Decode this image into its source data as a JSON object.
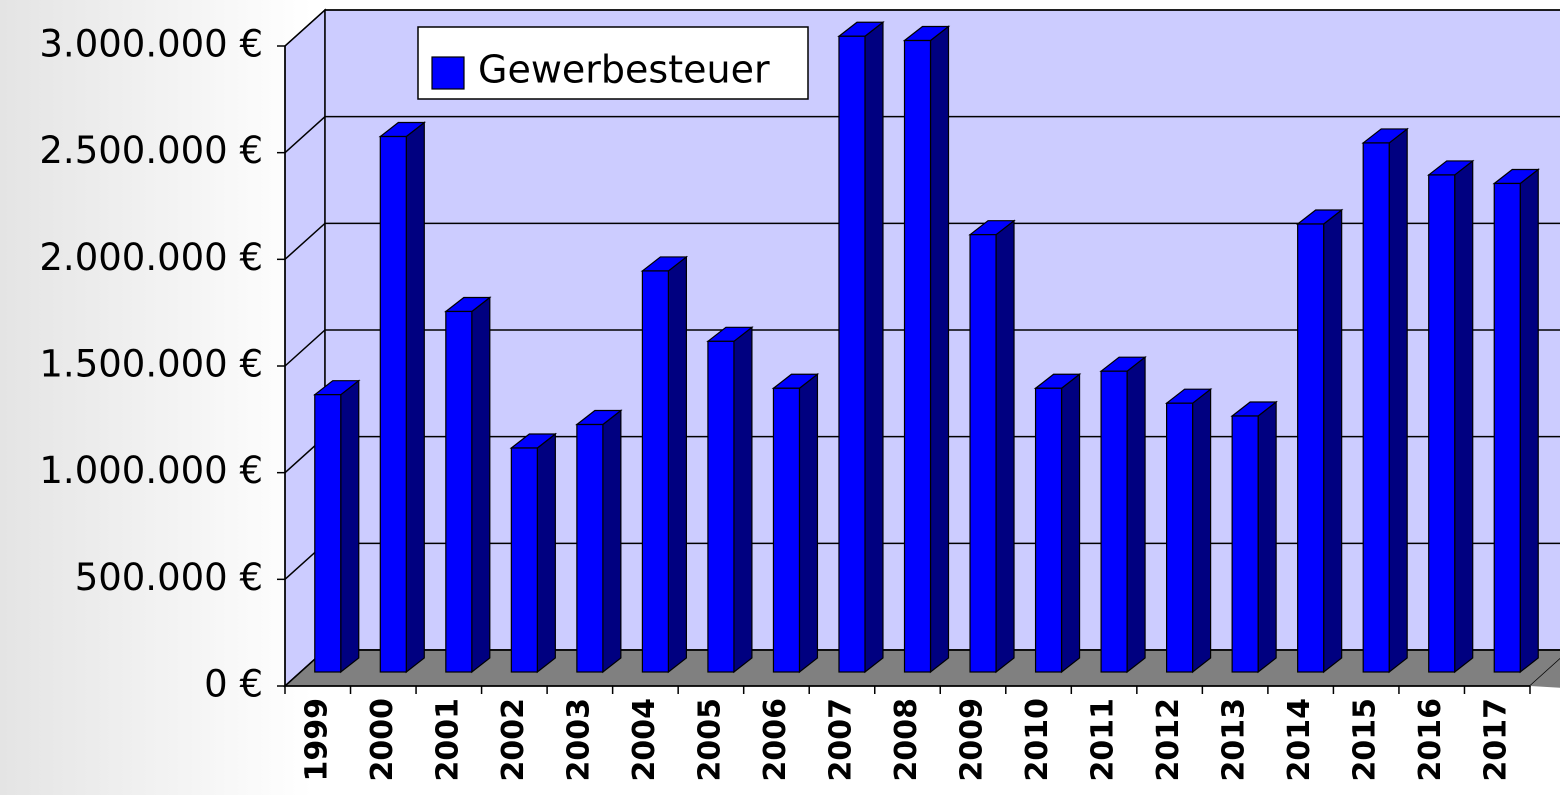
{
  "chart_data": {
    "type": "bar3d",
    "categories": [
      "1999",
      "2000",
      "2001",
      "2002",
      "2003",
      "2004",
      "2005",
      "2006",
      "2007",
      "2008",
      "2009",
      "2010",
      "2011",
      "2012",
      "2013",
      "2014",
      "2015",
      "2016",
      "2017"
    ],
    "series": [
      {
        "name": "Gewerbesteuer",
        "color": "#0000ff",
        "values": [
          1300000,
          2510000,
          1690000,
          1050000,
          1160000,
          1880000,
          1550000,
          1330000,
          2980000,
          2960000,
          2050000,
          1330000,
          1410000,
          1260000,
          1200000,
          2100000,
          2480000,
          2330000,
          2290000
        ]
      }
    ],
    "ylim": [
      0,
      3000000
    ],
    "yticks": [
      {
        "value": 0,
        "label": "0 €"
      },
      {
        "value": 500000,
        "label": "500.000 €"
      },
      {
        "value": 1000000,
        "label": "1.000.000 €"
      },
      {
        "value": 1500000,
        "label": "1.500.000 €"
      },
      {
        "value": 2000000,
        "label": "2.000.000 €"
      },
      {
        "value": 2500000,
        "label": "2.500.000 €"
      },
      {
        "value": 3000000,
        "label": "3.000.000 €"
      }
    ],
    "grid": true,
    "legend": "top-left"
  }
}
